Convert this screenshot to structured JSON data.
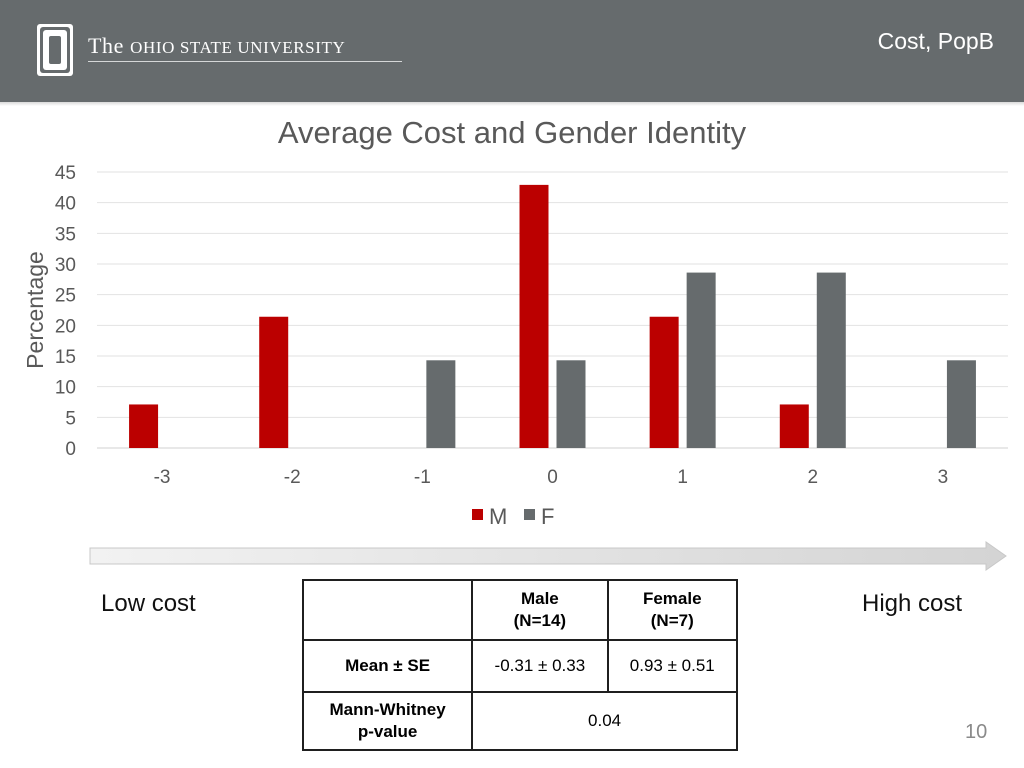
{
  "header": {
    "university_the": "The",
    "university_rest": "Ohio State University",
    "slide_tag": "Cost, PopB"
  },
  "chart_data": {
    "type": "bar",
    "title": "Average Cost and Gender Identity",
    "xlabel": "",
    "ylabel": "Percentage",
    "categories": [
      "-3",
      "-2",
      "-1",
      "0",
      "1",
      "2",
      "3"
    ],
    "series": [
      {
        "name": "M",
        "color": "#bb0000",
        "values": [
          7.1,
          21.4,
          0,
          42.9,
          21.4,
          7.1,
          0
        ]
      },
      {
        "name": "F",
        "color": "#666b6d",
        "values": [
          0,
          0,
          14.3,
          14.3,
          28.6,
          28.6,
          14.3
        ]
      }
    ],
    "ylim": [
      0,
      45
    ],
    "yticks": [
      "0",
      "5",
      "10",
      "15",
      "20",
      "25",
      "30",
      "35",
      "40",
      "45"
    ],
    "grid": true,
    "legend": "bottom"
  },
  "scale": {
    "low_label": "Low cost",
    "high_label": "High cost"
  },
  "table": {
    "male_header": [
      "Male",
      "(N=14)"
    ],
    "female_header": [
      "Female",
      "(N=7)"
    ],
    "row1_label": "Mean ± SE",
    "row1_male": "-0.31 ± 0.33",
    "row1_female": "0.93 ± 0.51",
    "row2_label": [
      "Mann-Whitney",
      "p-value"
    ],
    "row2_value": "0.04"
  },
  "page_number": "10"
}
